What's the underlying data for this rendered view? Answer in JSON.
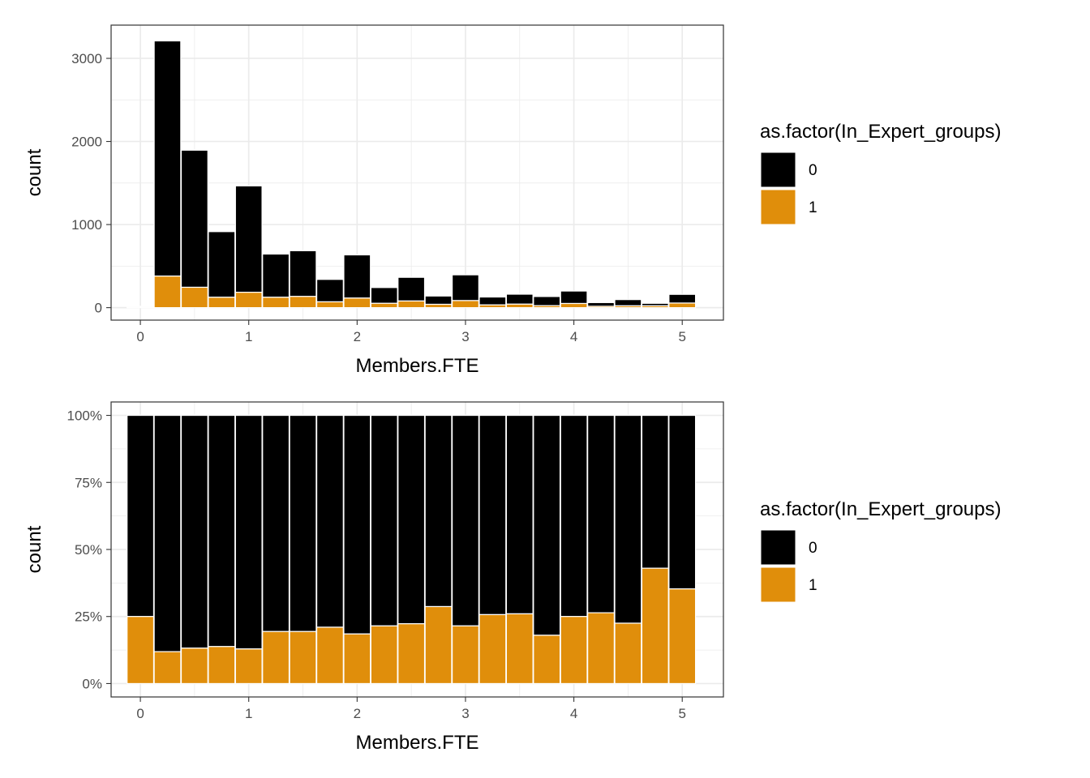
{
  "colors": {
    "group0": "#000000",
    "group1": "#E08E0B",
    "grid": "#ebebeb",
    "panel_border": "#333333",
    "tick_text": "#4d4d4d"
  },
  "chart_data": [
    {
      "type": "bar",
      "stacking": "stacked",
      "xlabel": "Members.FTE",
      "ylabel": "count",
      "x": [
        0,
        0.25,
        0.5,
        0.75,
        1.0,
        1.25,
        1.5,
        1.75,
        2.0,
        2.25,
        2.5,
        2.75,
        3.0,
        3.25,
        3.5,
        3.75,
        4.0,
        4.25,
        4.5,
        4.75,
        5.0
      ],
      "series": [
        {
          "name": "0",
          "values": [
            12,
            2830,
            1650,
            790,
            1280,
            520,
            550,
            270,
            520,
            190,
            285,
            100,
            310,
            95,
            120,
            110,
            150,
            45,
            75,
            30,
            105
          ]
        },
        {
          "name": "1",
          "values": [
            4,
            380,
            245,
            125,
            185,
            125,
            135,
            70,
            115,
            52,
            80,
            40,
            85,
            33,
            42,
            24,
            50,
            16,
            22,
            22,
            55
          ]
        }
      ],
      "xlim": [
        -0.27,
        5.38
      ],
      "ylim": [
        -150,
        3400
      ],
      "x_ticks": [
        0,
        1,
        2,
        3,
        4,
        5
      ],
      "x_tick_labels": [
        "0",
        "1",
        "2",
        "3",
        "4",
        "5"
      ],
      "y_ticks": [
        0,
        1000,
        2000,
        3000
      ],
      "y_tick_labels": [
        "0",
        "1000",
        "2000",
        "3000"
      ],
      "legend": {
        "title": "as.factor(In_Expert_groups)",
        "entries": [
          "0",
          "1"
        ],
        "position": "right"
      }
    },
    {
      "type": "bar",
      "stacking": "fill",
      "xlabel": "Members.FTE",
      "ylabel": "count",
      "x": [
        0,
        0.25,
        0.5,
        0.75,
        1.0,
        1.25,
        1.5,
        1.75,
        2.0,
        2.25,
        2.5,
        2.75,
        3.0,
        3.25,
        3.5,
        3.75,
        4.0,
        4.25,
        4.5,
        4.75,
        5.0
      ],
      "series": [
        {
          "name": "0",
          "values": [
            0.75,
            0.881,
            0.868,
            0.862,
            0.871,
            0.806,
            0.806,
            0.79,
            0.815,
            0.785,
            0.777,
            0.713,
            0.785,
            0.743,
            0.74,
            0.82,
            0.75,
            0.736,
            0.775,
            0.57,
            0.647
          ]
        },
        {
          "name": "1",
          "values": [
            0.25,
            0.119,
            0.132,
            0.138,
            0.129,
            0.194,
            0.194,
            0.21,
            0.185,
            0.215,
            0.223,
            0.287,
            0.215,
            0.257,
            0.26,
            0.18,
            0.25,
            0.264,
            0.225,
            0.43,
            0.353
          ]
        }
      ],
      "xlim": [
        -0.27,
        5.38
      ],
      "ylim": [
        -0.05,
        1.05
      ],
      "x_ticks": [
        0,
        1,
        2,
        3,
        4,
        5
      ],
      "x_tick_labels": [
        "0",
        "1",
        "2",
        "3",
        "4",
        "5"
      ],
      "y_ticks": [
        0,
        0.25,
        0.5,
        0.75,
        1.0
      ],
      "y_tick_labels": [
        "0%",
        "25%",
        "50%",
        "75%",
        "100%"
      ],
      "legend": {
        "title": "as.factor(In_Expert_groups)",
        "entries": [
          "0",
          "1"
        ],
        "position": "right"
      }
    }
  ]
}
